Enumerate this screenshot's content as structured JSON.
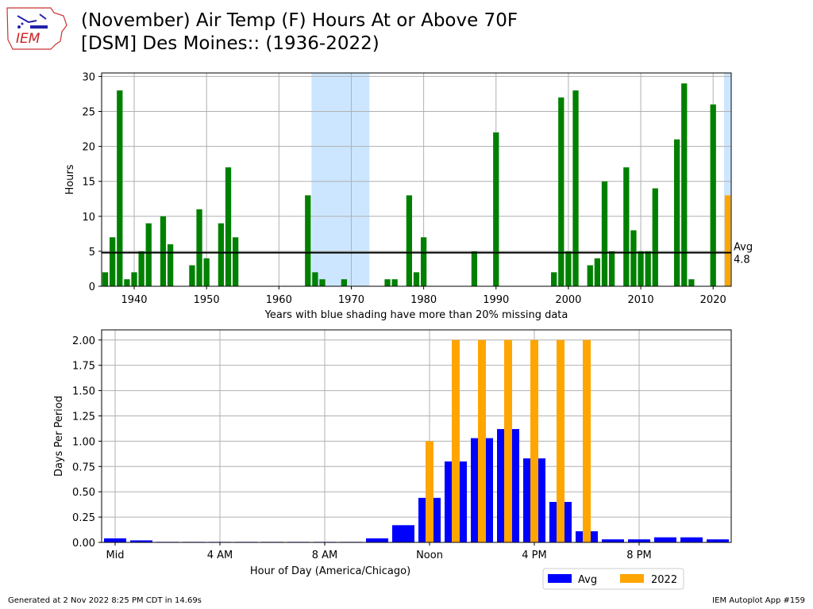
{
  "header": {
    "logo_text": "IEM",
    "title_line1": "(November) Air Temp (F) Hours At or Above 70F",
    "title_line2": "[DSM] Des Moines:: (1936-2022)"
  },
  "footer": {
    "generated": "Generated at 2 Nov 2022 8:25 PM CDT in 14.69s",
    "app": "IEM Autoplot App #159"
  },
  "colors": {
    "green": "#008000",
    "orange": "#ffa500",
    "blue": "#0000ff",
    "missing_shade": "#cce6ff",
    "grid": "#b0b0b0"
  },
  "chart_data": [
    {
      "type": "bar",
      "xlabel": "Years with blue shading have more than 20% missing data",
      "ylabel": "Hours",
      "xlim": [
        1935.5,
        2022.5
      ],
      "ylim": [
        0,
        30.5
      ],
      "x_ticks": [
        1940,
        1950,
        1960,
        1970,
        1980,
        1990,
        2000,
        2010,
        2020
      ],
      "y_ticks": [
        0,
        5,
        10,
        15,
        20,
        25,
        30
      ],
      "grid": true,
      "missing_ranges": [
        [
          1964.5,
          1972.5
        ],
        [
          2021.5,
          2022.5
        ]
      ],
      "avg_value": 4.8,
      "avg_label": "Avg",
      "avg_value_label": "4.8",
      "current_year": 2022,
      "series": [
        {
          "x": [
            1936,
            1937,
            1938,
            1939,
            1940,
            1941,
            1942,
            1944,
            1945,
            1948,
            1949,
            1950,
            1952,
            1953,
            1954,
            1964,
            1965,
            1966,
            1969,
            1975,
            1976,
            1978,
            1979,
            1980,
            1987,
            1990,
            1998,
            1999,
            2000,
            2001,
            2003,
            2004,
            2005,
            2006,
            2008,
            2009,
            2010,
            2011,
            2012,
            2015,
            2016,
            2017,
            2020,
            2022
          ],
          "values": [
            2,
            7,
            28,
            1,
            2,
            5,
            9,
            10,
            6,
            3,
            11,
            4,
            9,
            17,
            7,
            13,
            2,
            1,
            1,
            1,
            1,
            13,
            2,
            7,
            5,
            22,
            2,
            27,
            5,
            28,
            3,
            4,
            15,
            5,
            17,
            8,
            5,
            5,
            14,
            21,
            29,
            1,
            26,
            13
          ]
        }
      ]
    },
    {
      "type": "bar",
      "xlabel": "Hour of Day (America/Chicago)",
      "ylabel": "Days Per Period",
      "categories": [
        "Mid",
        "4 AM",
        "8 AM",
        "Noon",
        "4 PM",
        "8 PM"
      ],
      "category_hours": [
        0,
        4,
        8,
        12,
        16,
        20
      ],
      "ylim": [
        0,
        2.1
      ],
      "y_ticks": [
        0.0,
        0.25,
        0.5,
        0.75,
        1.0,
        1.25,
        1.5,
        1.75,
        2.0
      ],
      "grid": true,
      "legend_position": "below-right",
      "series": [
        {
          "name": "Avg",
          "x": [
            0,
            1,
            2,
            3,
            4,
            5,
            6,
            7,
            8,
            9,
            10,
            11,
            12,
            13,
            14,
            15,
            16,
            17,
            18,
            19,
            20,
            21,
            22,
            23
          ],
          "values": [
            0.04,
            0.02,
            0.005,
            0.005,
            0.005,
            0.005,
            0.005,
            0.005,
            0.005,
            0.005,
            0.04,
            0.17,
            0.44,
            0.8,
            1.03,
            1.12,
            0.83,
            0.4,
            0.11,
            0.03,
            0.03,
            0.05,
            0.05,
            0.03
          ]
        },
        {
          "name": "2022",
          "x": [
            12,
            13,
            14,
            15,
            16,
            17,
            18
          ],
          "values": [
            1,
            2,
            2,
            2,
            2,
            2,
            2
          ]
        }
      ]
    }
  ]
}
